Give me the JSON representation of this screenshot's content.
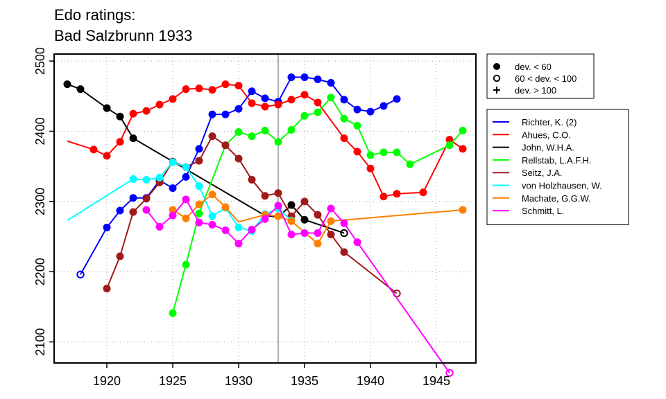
{
  "chart_data": {
    "type": "line",
    "title": "Edo ratings:",
    "subtitle": "Bad Salzbrunn 1933",
    "xlabel": "",
    "ylabel": "",
    "xlim": [
      1916,
      1948
    ],
    "ylim": [
      2070,
      2510
    ],
    "x_ticks": [
      "1920",
      "1925",
      "1930",
      "1935",
      "1940",
      "1945"
    ],
    "y_ticks": [
      "2100",
      "2200",
      "2300",
      "2400",
      "2500"
    ],
    "grid": true,
    "reference_line_x": 1933,
    "marker_legend": {
      "position": "top-right",
      "items": [
        {
          "symbol": "filled-circle",
          "label": "dev. < 60"
        },
        {
          "symbol": "open-circle",
          "label": "60 < dev. < 100"
        },
        {
          "symbol": "plus",
          "label": "dev. > 100"
        }
      ]
    },
    "series": [
      {
        "name": "Richter, K. (2)",
        "color": "#0000ff",
        "points": [
          [
            1918,
            2196,
            "o"
          ],
          [
            1920,
            2263,
            "f"
          ],
          [
            1921,
            2287,
            "f"
          ],
          [
            1922,
            2305,
            "f"
          ],
          [
            1923,
            2305,
            "f"
          ],
          [
            1924,
            2330,
            "f"
          ],
          [
            1925,
            2319,
            "f"
          ],
          [
            1926,
            2335,
            "f"
          ],
          [
            1927,
            2375,
            "f"
          ],
          [
            1928,
            2424,
            "f"
          ],
          [
            1929,
            2424,
            "f"
          ],
          [
            1930,
            2432,
            "f"
          ],
          [
            1931,
            2457,
            "f"
          ],
          [
            1932,
            2447,
            "f"
          ],
          [
            1933,
            2442,
            "f"
          ],
          [
            1934,
            2477,
            "f"
          ],
          [
            1935,
            2477,
            "f"
          ],
          [
            1936,
            2474,
            "f"
          ],
          [
            1937,
            2469,
            "f"
          ],
          [
            1938,
            2445,
            "f"
          ],
          [
            1939,
            2431,
            "f"
          ],
          [
            1940,
            2428,
            "f"
          ],
          [
            1941,
            2436,
            "f"
          ],
          [
            1942,
            2446,
            "f"
          ]
        ]
      },
      {
        "name": "Ahues, C.O.",
        "color": "#ff0000",
        "points": [
          [
            1917,
            2386,
            "n"
          ],
          [
            1919,
            2374,
            "f"
          ],
          [
            1920,
            2365,
            "f"
          ],
          [
            1921,
            2385,
            "f"
          ],
          [
            1922,
            2425,
            "f"
          ],
          [
            1923,
            2429,
            "f"
          ],
          [
            1924,
            2438,
            "f"
          ],
          [
            1925,
            2446,
            "f"
          ],
          [
            1926,
            2460,
            "f"
          ],
          [
            1927,
            2461,
            "f"
          ],
          [
            1928,
            2459,
            "f"
          ],
          [
            1929,
            2467,
            "f"
          ],
          [
            1930,
            2465,
            "f"
          ],
          [
            1931,
            2440,
            "f"
          ],
          [
            1932,
            2435,
            "f"
          ],
          [
            1933,
            2438,
            "f"
          ],
          [
            1934,
            2445,
            "f"
          ],
          [
            1935,
            2452,
            "f"
          ],
          [
            1936,
            2441,
            "f"
          ],
          [
            1938,
            2390,
            "f"
          ],
          [
            1939,
            2371,
            "f"
          ],
          [
            1940,
            2347,
            "f"
          ],
          [
            1941,
            2307,
            "f"
          ],
          [
            1942,
            2311,
            "f"
          ],
          [
            1944,
            2313,
            "f"
          ],
          [
            1946,
            2388,
            "f"
          ],
          [
            1947,
            2375,
            "f"
          ]
        ]
      },
      {
        "name": "John, W.H.A.",
        "color": "#000000",
        "points": [
          [
            1917,
            2467,
            "f"
          ],
          [
            1918,
            2460,
            "f"
          ],
          [
            1920,
            2433,
            "f"
          ],
          [
            1921,
            2421,
            "f"
          ],
          [
            1922,
            2390,
            "f"
          ],
          [
            1932,
            2280,
            "n"
          ],
          [
            1933,
            2278,
            "n"
          ],
          [
            1934,
            2295,
            "f"
          ],
          [
            1935,
            2274,
            "f"
          ],
          [
            1938,
            2255,
            "o"
          ]
        ]
      },
      {
        "name": "Rellstab, L.A.F.H.",
        "color": "#00ff00",
        "points": [
          [
            1925,
            2141,
            "f"
          ],
          [
            1926,
            2210,
            "f"
          ],
          [
            1927,
            2283,
            "f"
          ],
          [
            1929,
            2380,
            "n"
          ],
          [
            1930,
            2399,
            "f"
          ],
          [
            1931,
            2393,
            "f"
          ],
          [
            1932,
            2401,
            "f"
          ],
          [
            1933,
            2385,
            "f"
          ],
          [
            1934,
            2402,
            "f"
          ],
          [
            1935,
            2422,
            "f"
          ],
          [
            1936,
            2427,
            "f"
          ],
          [
            1937,
            2448,
            "f"
          ],
          [
            1938,
            2418,
            "f"
          ],
          [
            1939,
            2408,
            "f"
          ],
          [
            1940,
            2366,
            "f"
          ],
          [
            1941,
            2370,
            "f"
          ],
          [
            1942,
            2370,
            "f"
          ],
          [
            1943,
            2353,
            "f"
          ],
          [
            1946,
            2380,
            "f"
          ],
          [
            1947,
            2401,
            "f"
          ]
        ]
      },
      {
        "name": "Seitz, J.A.",
        "color": "#a01a1a",
        "points": [
          [
            1920,
            2176,
            "f"
          ],
          [
            1921,
            2222,
            "f"
          ],
          [
            1922,
            2285,
            "f"
          ],
          [
            1923,
            2304,
            "f"
          ],
          [
            1924,
            2327,
            "f"
          ],
          [
            1925,
            2357,
            "f"
          ],
          [
            1926,
            2349,
            "f"
          ],
          [
            1927,
            2358,
            "f"
          ],
          [
            1928,
            2393,
            "f"
          ],
          [
            1929,
            2380,
            "f"
          ],
          [
            1930,
            2361,
            "f"
          ],
          [
            1931,
            2331,
            "f"
          ],
          [
            1932,
            2308,
            "f"
          ],
          [
            1933,
            2312,
            "f"
          ],
          [
            1934,
            2279,
            "f"
          ],
          [
            1935,
            2300,
            "f"
          ],
          [
            1936,
            2281,
            "f"
          ],
          [
            1937,
            2253,
            "f"
          ],
          [
            1938,
            2228,
            "f"
          ],
          [
            1942,
            2169,
            "o"
          ]
        ]
      },
      {
        "name": "von Holzhausen, W.",
        "color": "#00ffff",
        "points": [
          [
            1917,
            2273,
            "n"
          ],
          [
            1922,
            2332,
            "f"
          ],
          [
            1923,
            2331,
            "f"
          ],
          [
            1924,
            2334,
            "f"
          ],
          [
            1925,
            2356,
            "f"
          ],
          [
            1926,
            2349,
            "f"
          ],
          [
            1927,
            2322,
            "f"
          ],
          [
            1928,
            2279,
            "f"
          ],
          [
            1929,
            2291,
            "f"
          ],
          [
            1930,
            2263,
            "f"
          ],
          [
            1931,
            2258,
            "f"
          ],
          [
            1932,
            2282,
            "f"
          ],
          [
            1933,
            2290,
            "f"
          ],
          [
            1934,
            2273,
            "f"
          ]
        ]
      },
      {
        "name": "Machate, G.G.W.",
        "color": "#ff7f00",
        "points": [
          [
            1925,
            2288,
            "f"
          ],
          [
            1926,
            2276,
            "f"
          ],
          [
            1927,
            2296,
            "f"
          ],
          [
            1928,
            2310,
            "f"
          ],
          [
            1929,
            2292,
            "f"
          ],
          [
            1930,
            2271,
            "n"
          ],
          [
            1932,
            2281,
            "f"
          ],
          [
            1933,
            2279,
            "f"
          ],
          [
            1934,
            2272,
            "f"
          ],
          [
            1936,
            2240,
            "f"
          ],
          [
            1937,
            2272,
            "f"
          ],
          [
            1947,
            2288,
            "f"
          ]
        ]
      },
      {
        "name": "Schmitt, L.",
        "color": "#ff00ff",
        "points": [
          [
            1923,
            2288,
            "f"
          ],
          [
            1924,
            2264,
            "f"
          ],
          [
            1925,
            2280,
            "f"
          ],
          [
            1926,
            2303,
            "f"
          ],
          [
            1927,
            2270,
            "f"
          ],
          [
            1928,
            2267,
            "f"
          ],
          [
            1929,
            2259,
            "f"
          ],
          [
            1930,
            2240,
            "f"
          ],
          [
            1931,
            2260,
            "f"
          ],
          [
            1932,
            2275,
            "f"
          ],
          [
            1933,
            2294,
            "f"
          ],
          [
            1934,
            2253,
            "f"
          ],
          [
            1935,
            2255,
            "f"
          ],
          [
            1936,
            2255,
            "f"
          ],
          [
            1937,
            2290,
            "f"
          ],
          [
            1938,
            2269,
            "f"
          ],
          [
            1939,
            2242,
            "f"
          ],
          [
            1946,
            2056,
            "o"
          ]
        ]
      }
    ]
  }
}
